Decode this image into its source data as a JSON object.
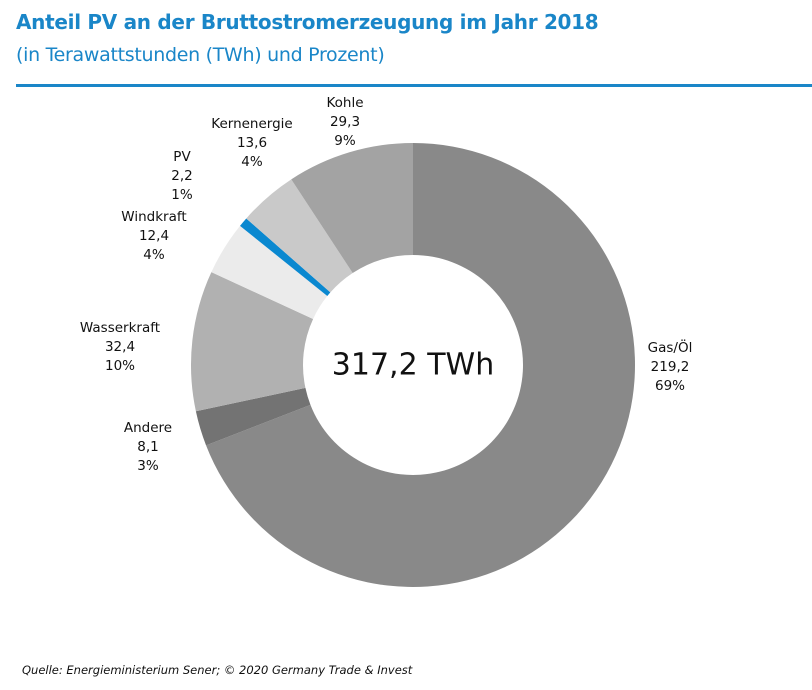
{
  "chart_data": {
    "type": "pie",
    "variant": "donut",
    "title": "Anteil PV an der Bruttostromerzeugung im Jahr 2018",
    "subtitle": "(in Terawattstunden (TWh) und Prozent)",
    "center_label": "317,2 TWh",
    "total": 317.2,
    "unit": "TWh",
    "start": "top",
    "direction": "clockwise",
    "slices": [
      {
        "name": "Gas/Öl",
        "value": 219.2,
        "value_label": "219,2",
        "percent_label": "69%",
        "color": "#898989"
      },
      {
        "name": "Andere",
        "value": 8.1,
        "value_label": "8,1",
        "percent_label": "3%",
        "color": "#737373"
      },
      {
        "name": "Wasserkraft",
        "value": 32.4,
        "value_label": "32,4",
        "percent_label": "10%",
        "color": "#b1b1b1"
      },
      {
        "name": "Windkraft",
        "value": 12.4,
        "value_label": "12,4",
        "percent_label": "4%",
        "color": "#ebebeb"
      },
      {
        "name": "PV",
        "value": 2.2,
        "value_label": "2,2",
        "percent_label": "1%",
        "color": "#0a88d0"
      },
      {
        "name": "Kernenergie",
        "value": 13.6,
        "value_label": "13,6",
        "percent_label": "4%",
        "color": "#c9c9c9"
      },
      {
        "name": "Kohle",
        "value": 29.3,
        "value_label": "29,3",
        "percent_label": "9%",
        "color": "#a3a3a3"
      }
    ]
  },
  "source": "Quelle: Energieministerium Sener; © 2020  Germany Trade & Invest"
}
